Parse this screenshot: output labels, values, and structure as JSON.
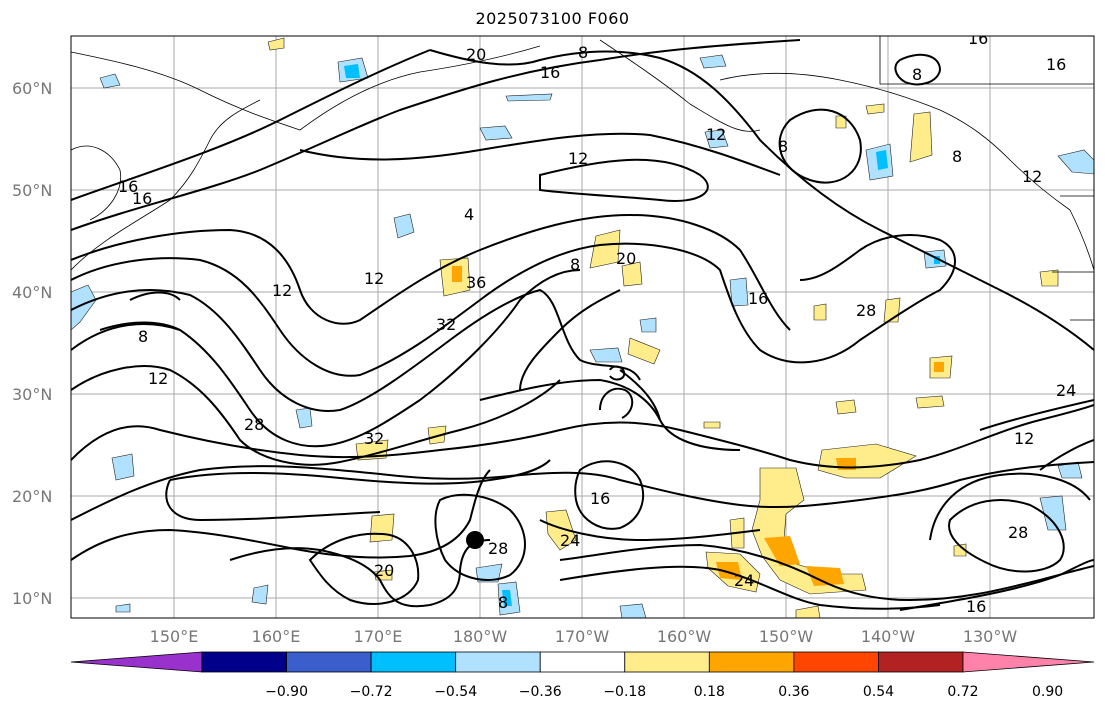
{
  "title": "2025073100 F060",
  "map": {
    "lat_labels": [
      "60°N",
      "50°N",
      "40°N",
      "30°N",
      "20°N",
      "10°N"
    ],
    "lon_labels": [
      "150°E",
      "160°E",
      "170°E",
      "180°W",
      "170°W",
      "160°W",
      "150°W",
      "140°W",
      "130°W"
    ],
    "contour_labels": [
      "20",
      "8",
      "16",
      "16",
      "12",
      "12",
      "8",
      "8",
      "16",
      "16",
      "8",
      "16",
      "12",
      "12",
      "12",
      "8",
      "20",
      "16",
      "4",
      "36",
      "32",
      "28",
      "24",
      "8",
      "12",
      "28",
      "32",
      "12",
      "16",
      "28",
      "24",
      "28",
      "20",
      "24",
      "8",
      "16"
    ],
    "marker": "tropical-cyclone-center"
  },
  "colorbar": {
    "colors": [
      "#9932cc",
      "#00008b",
      "#3a5fcd",
      "#00bfff",
      "#b0e2ff",
      "#ffffff",
      "#ffec8b",
      "#ffa500",
      "#ff4500",
      "#b22222",
      "#ff82ab"
    ],
    "tick_labels": [
      "−0.90",
      "−0.72",
      "−0.54",
      "−0.36",
      "−0.18",
      "0.18",
      "0.36",
      "0.54",
      "0.72",
      "0.90"
    ]
  }
}
